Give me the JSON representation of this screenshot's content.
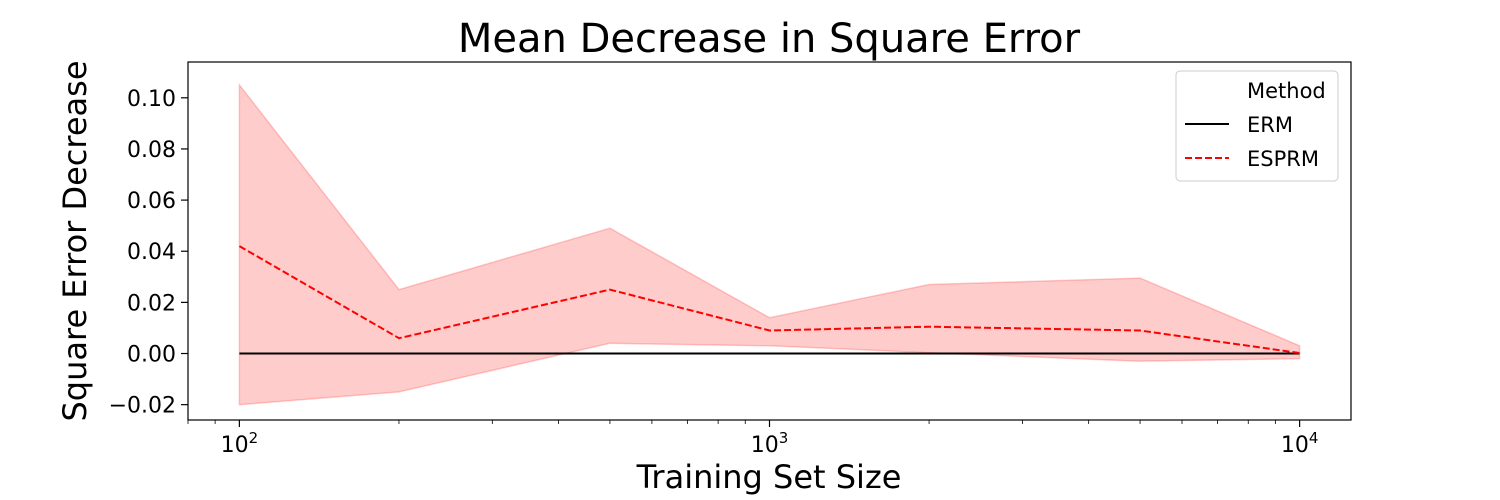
{
  "chart_data": {
    "type": "line",
    "title": "Mean Decrease in Square Error",
    "xlabel": "Training Set Size",
    "ylabel": "Square Error Decrease",
    "x_scale": "log",
    "xlim": [
      80,
      12500
    ],
    "ylim": [
      -0.026,
      0.114
    ],
    "x_ticks": [
      {
        "value": 100,
        "base": "10",
        "exp": "2"
      },
      {
        "value": 1000,
        "base": "10",
        "exp": "3"
      },
      {
        "value": 10000,
        "base": "10",
        "exp": "4"
      }
    ],
    "y_ticks": [
      {
        "value": -0.02,
        "label": "−0.02"
      },
      {
        "value": 0.0,
        "label": "0.00"
      },
      {
        "value": 0.02,
        "label": "0.02"
      },
      {
        "value": 0.04,
        "label": "0.04"
      },
      {
        "value": 0.06,
        "label": "0.06"
      },
      {
        "value": 0.08,
        "label": "0.08"
      },
      {
        "value": 0.1,
        "label": "0.10"
      }
    ],
    "x": [
      100,
      200,
      500,
      1000,
      2000,
      5000,
      10000
    ],
    "series": [
      {
        "name": "ERM",
        "values": [
          0,
          0,
          0,
          0,
          0,
          0,
          0
        ],
        "color": "#000000",
        "dash": "solid"
      },
      {
        "name": "ESPRM",
        "values": [
          0.042,
          0.006,
          0.025,
          0.009,
          0.0105,
          0.009,
          0.0002
        ],
        "color": "#ff0000",
        "dash": "dashed",
        "band_upper": [
          0.105,
          0.025,
          0.049,
          0.014,
          0.027,
          0.0295,
          0.003
        ],
        "band_lower": [
          -0.02,
          -0.015,
          0.004,
          0.003,
          0.0003,
          -0.003,
          -0.002
        ],
        "band_color": "#ff0000"
      }
    ],
    "legend": {
      "title": "Method",
      "placement": "top-right"
    },
    "grid": false
  }
}
